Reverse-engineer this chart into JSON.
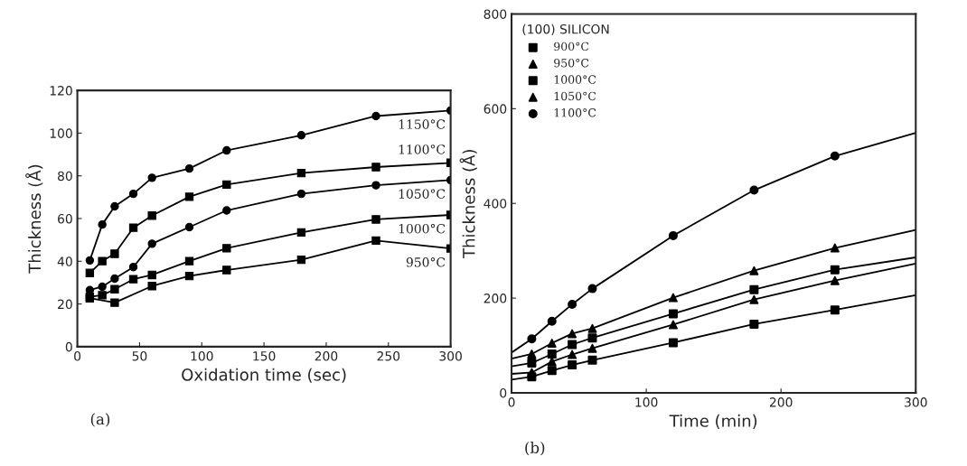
{
  "chart_data": [
    {
      "type": "line",
      "xlabel": "Oxidation time (sec)",
      "ylabel": "Thickness (Å)",
      "xlim": [
        0,
        300
      ],
      "ylim": [
        0,
        120
      ],
      "xticks": [
        0,
        50,
        100,
        150,
        200,
        250,
        300
      ],
      "yticks": [
        0,
        20,
        40,
        60,
        80,
        100,
        120
      ],
      "grid": false,
      "legend": false,
      "annotations": [
        "(a)"
      ],
      "series": [
        {
          "name": "1150°C",
          "color": "#000000",
          "marker": "circle",
          "x": [
            10,
            20,
            30,
            45,
            60,
            90,
            120,
            180,
            240,
            300
          ],
          "values": [
            40.4,
            57.2,
            65.7,
            71.6,
            79.1,
            83.4,
            91.9,
            99,
            108,
            110.6
          ]
        },
        {
          "name": "1100°C",
          "color": "#000000",
          "marker": "square",
          "x": [
            10,
            20,
            30,
            45,
            60,
            90,
            120,
            180,
            240,
            300
          ],
          "values": [
            34.5,
            40.1,
            43.5,
            55.7,
            61.4,
            70.2,
            75.9,
            81.3,
            84.1,
            86.1
          ]
        },
        {
          "name": "1050°C",
          "color": "#000000",
          "marker": "circle",
          "x": [
            10,
            20,
            30,
            45,
            60,
            90,
            120,
            180,
            240,
            300
          ],
          "values": [
            26.5,
            28.1,
            31.9,
            37.3,
            48.2,
            56,
            63.8,
            71.6,
            75.6,
            78
          ]
        },
        {
          "name": "1000°C",
          "color": "#000000",
          "marker": "square",
          "x": [
            10,
            20,
            30,
            45,
            60,
            90,
            120,
            180,
            240,
            300
          ],
          "values": [
            23.4,
            24.1,
            26.9,
            31.6,
            33.6,
            40.1,
            46.1,
            53.5,
            59.6,
            61.7
          ]
        },
        {
          "name": "950°C",
          "color": "#000000",
          "marker": "square",
          "x": [
            10,
            30,
            60,
            90,
            120,
            180,
            240,
            300
          ],
          "values": [
            22.7,
            20.6,
            28.4,
            33.1,
            35.9,
            40.7,
            49.7,
            46
          ]
        }
      ]
    },
    {
      "type": "scatter",
      "xlabel": "Time (min)",
      "ylabel": "Thickness (Å)",
      "xlim": [
        0,
        300
      ],
      "ylim": [
        0,
        800
      ],
      "xticks": [
        0,
        100,
        200,
        300
      ],
      "yticks": [
        0,
        200,
        400,
        600,
        800
      ],
      "grid": false,
      "legend": "top left",
      "legend_title": "(100) SILICON",
      "annotations": [
        "(b)"
      ],
      "series": [
        {
          "type": "line",
          "color": "#000000",
          "marker": "none",
          "x": [
            0,
            15,
            30,
            45,
            60,
            120,
            180,
            240,
            300
          ],
          "values": [
            85,
            114,
            151,
            187,
            220,
            332,
            428,
            500,
            549
          ]
        },
        {
          "type": "line",
          "color": "#000000",
          "marker": "none",
          "x": [
            0,
            15,
            30,
            45,
            60,
            120,
            180,
            240,
            300
          ],
          "values": [
            72,
            82,
            105,
            125,
            136,
            201,
            258,
            306,
            344
          ]
        },
        {
          "type": "line",
          "color": "#000000",
          "marker": "none",
          "x": [
            0,
            15,
            30,
            45,
            60,
            120,
            180,
            240,
            300
          ],
          "values": [
            56,
            63,
            82,
            102,
            116,
            167,
            218,
            260,
            286
          ]
        },
        {
          "type": "line",
          "color": "#000000",
          "marker": "none",
          "x": [
            0,
            15,
            30,
            45,
            60,
            120,
            180,
            240,
            300
          ],
          "values": [
            40,
            43,
            66,
            81,
            94,
            144,
            197,
            237,
            273
          ]
        },
        {
          "type": "line",
          "color": "#000000",
          "marker": "none",
          "x": [
            0,
            15,
            30,
            45,
            60,
            120,
            180,
            240,
            300
          ],
          "values": [
            28,
            34,
            47,
            59,
            69,
            106,
            145,
            175,
            206
          ]
        },
        {
          "name": "900°C",
          "color": "#000000",
          "marker": "square",
          "x": [
            15,
            30,
            45,
            60,
            120,
            180,
            240
          ],
          "values": [
            34,
            47,
            59,
            69,
            106,
            145,
            175
          ]
        },
        {
          "name": "950°C",
          "color": "#000000",
          "marker": "triangle",
          "x": [
            15,
            30,
            45,
            60,
            120,
            180,
            240
          ],
          "values": [
            43,
            66,
            81,
            94,
            144,
            197,
            237
          ]
        },
        {
          "name": "1000°C",
          "color": "#000000",
          "marker": "square",
          "x": [
            15,
            30,
            45,
            60,
            120,
            180,
            240
          ],
          "values": [
            63,
            82,
            102,
            116,
            167,
            218,
            260
          ]
        },
        {
          "name": "1050°C",
          "color": "#000000",
          "marker": "triangle",
          "x": [
            15,
            30,
            45,
            60,
            120,
            180,
            240
          ],
          "values": [
            82,
            105,
            125,
            136,
            201,
            258,
            306
          ]
        },
        {
          "name": "1100°C",
          "color": "#000000",
          "marker": "circle",
          "x": [
            15,
            30,
            45,
            60,
            120,
            180,
            240
          ],
          "values": [
            114,
            151,
            187,
            220,
            332,
            428,
            500
          ]
        }
      ]
    }
  ]
}
